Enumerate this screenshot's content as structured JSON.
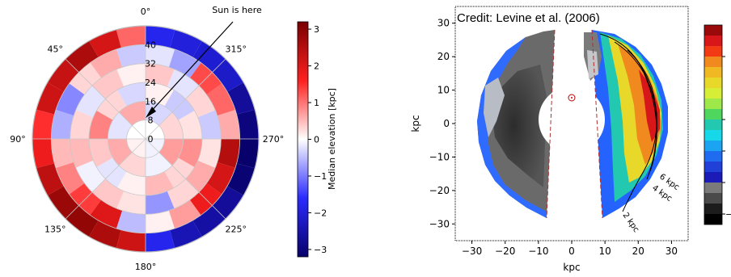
{
  "chart_data": [
    {
      "type": "heatmap",
      "projection": "polar",
      "angle_ticks": [
        "0°",
        "45°",
        "90°",
        "135°",
        "180°",
        "225°",
        "270°",
        "315°"
      ],
      "radial_ticks": [
        "0",
        "8",
        "16",
        "24",
        "32",
        "40"
      ],
      "radial_range": [
        0,
        40
      ],
      "annotation": "Sun is here",
      "colorbar_label": "Median elevation [kpc]",
      "colorbar_range": [
        -3.2,
        3.2
      ],
      "colorbar_ticks": [
        "3",
        "2",
        "1",
        "0",
        "−1",
        "−2",
        "−3"
      ],
      "colormap": [
        "#08006b",
        "#2a2aff",
        "#ffffff",
        "#ff2020",
        "#7a0000"
      ],
      "rings": [
        {
          "r": [
            0,
            8
          ],
          "segments": 4,
          "values": [
            0.0,
            0.1,
            -0.1,
            0.0
          ]
        },
        {
          "r": [
            8,
            16
          ],
          "segments": 8,
          "values": [
            0.6,
            -0.2,
            0.6,
            0.3,
            -0.1,
            0.7,
            0.3,
            -0.3
          ]
        },
        {
          "r": [
            16,
            24
          ],
          "segments": 12,
          "values": [
            -0.3,
            0.3,
            0.9,
            0.4,
            -0.2,
            0.1,
            0.5,
            0.3,
            0.8,
            0.2,
            -0.4,
            0.1
          ]
        },
        {
          "r": [
            24,
            32
          ],
          "segments": 16,
          "values": [
            0.1,
            0.4,
            -0.2,
            0.3,
            0.5,
            -0.1,
            0.4,
            0.2,
            -0.8,
            0.3,
            0.6,
            0.2,
            -0.4,
            0.3,
            -0.2,
            0.4
          ]
        },
        {
          "r": [
            32,
            40
          ],
          "segments": 20,
          "values": [
            -0.4,
            0.6,
            0.3,
            -0.9,
            -0.6,
            0.5,
            0.9,
            1.4,
            2.0,
            -0.5,
            0.1,
            0.7,
            1.8,
            2.1,
            2.5,
            0.6,
            1.1,
            1.3,
            -0.7,
            -0.2
          ]
        },
        {
          "r": [
            40,
            48
          ],
          "segments": 24,
          "values": [
            1.1,
            2.1,
            2.6,
            2.3,
            2.2,
            1.5,
            1.8,
            2.4,
            2.8,
            2.9,
            2.6,
            2.2,
            -1.8,
            -2.4,
            -2.6,
            -2.7,
            -3.1,
            -3.2,
            -3.0,
            -2.7,
            -2.2,
            -2.1,
            -2.0,
            -1.8
          ]
        }
      ]
    },
    {
      "type": "heatmap",
      "title": "Credit: Levine et al. (2006)",
      "xlabel": "kpc",
      "ylabel": "kpc",
      "xlim": [
        -35,
        35
      ],
      "ylim": [
        -35,
        35
      ],
      "x_ticks": [
        "−30",
        "−20",
        "−10",
        "0",
        "10",
        "20",
        "30"
      ],
      "y_ticks": [
        "30",
        "20",
        "10",
        "0",
        "−10",
        "−20",
        "−30"
      ],
      "contour_labels": [
        "6 kpc",
        "4 kpc",
        "2 kpc"
      ],
      "colorbar_ticks": [
        "",
        "",
        "",
        "",
        "−"
      ]
    }
  ]
}
